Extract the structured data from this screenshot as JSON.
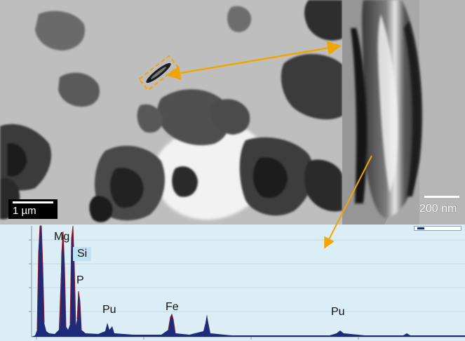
{
  "tem_overview": {
    "scale_label": "1 µm"
  },
  "tem_zoom": {
    "scale_label": "200 nm"
  },
  "eds": {
    "peak_labels": [
      {
        "id": "mg",
        "text": "Mg"
      },
      {
        "id": "si",
        "text": "Si"
      },
      {
        "id": "p",
        "text": "P"
      },
      {
        "id": "pu1",
        "text": "Pu"
      },
      {
        "id": "fe",
        "text": "Fe"
      },
      {
        "id": "pu2",
        "text": "Pu"
      }
    ]
  },
  "colors": {
    "annotation_arrow": "#f0a500",
    "spectrum_fill": "#1e2a7a",
    "spectrum_peak": "#8b1c2c",
    "plot_background": "#dbeef6"
  }
}
